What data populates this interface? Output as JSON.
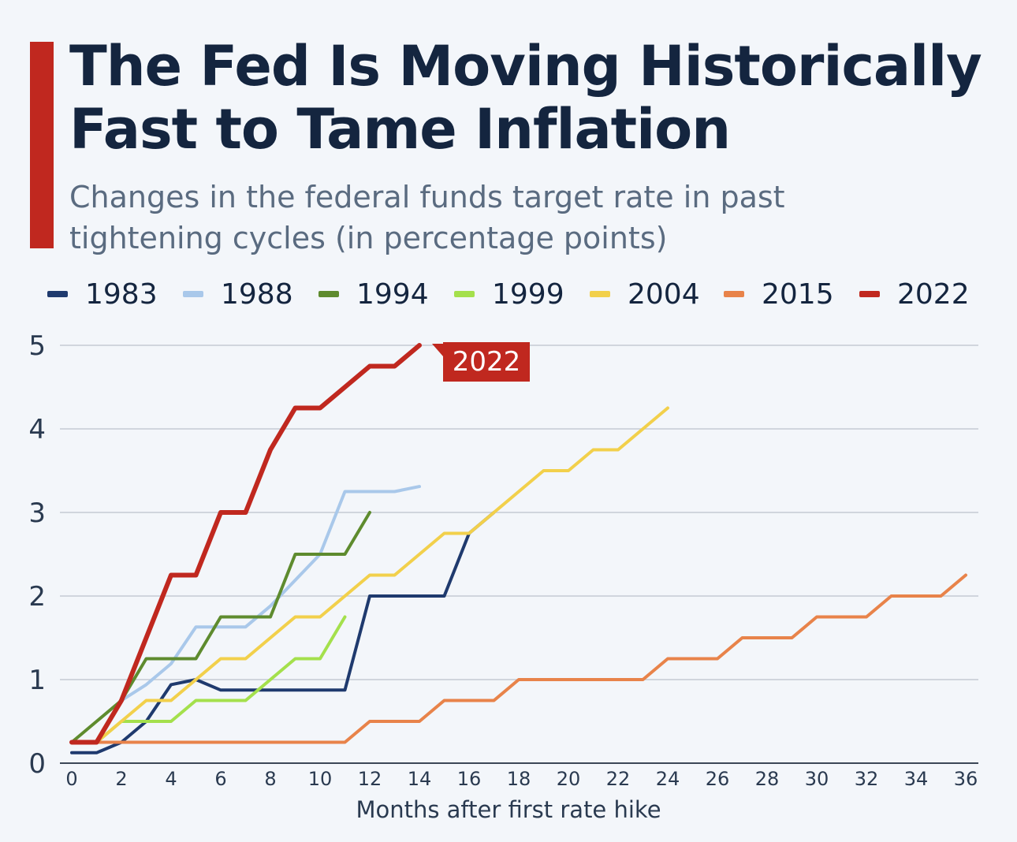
{
  "header": {
    "title_line1": "The Fed Is Moving Historically",
    "title_line2": "Fast to Tame Inflation",
    "subtitle_line1": "Changes in the federal funds target rate in past",
    "subtitle_line2": "tightening cycles (in percentage points)"
  },
  "colors": {
    "accent": "#c0281f",
    "title": "#14253f",
    "subtitle": "#5a6b80",
    "grid": "#c4cad3",
    "axis": "#3b4656"
  },
  "chart_data": {
    "type": "line",
    "title": "The Fed Is Moving Historically Fast to Tame Inflation",
    "subtitle": "Changes in the federal funds target rate in past tightening cycles (in percentage points)",
    "xlabel": "Months after first rate hike",
    "ylabel": "",
    "xlim": [
      0,
      36
    ],
    "ylim": [
      0,
      5
    ],
    "xticks": [
      0,
      2,
      4,
      6,
      8,
      10,
      12,
      14,
      16,
      18,
      20,
      22,
      24,
      26,
      28,
      30,
      32,
      34,
      36
    ],
    "yticks": [
      0,
      1,
      2,
      3,
      4,
      5
    ],
    "grid": true,
    "legend_position": "top",
    "series": [
      {
        "name": "1983",
        "color": "#1f3a6e",
        "x": [
          0,
          1,
          2,
          3,
          4,
          5,
          6,
          7,
          8,
          9,
          10,
          11,
          12,
          13,
          14,
          15,
          16,
          17
        ],
        "y": [
          0.125,
          0.125,
          0.25,
          0.5,
          0.94,
          1.0,
          0.875,
          0.875,
          0.875,
          0.875,
          0.875,
          0.875,
          2.0,
          2.0,
          2.0,
          2.0,
          2.75,
          3.0
        ]
      },
      {
        "name": "1988",
        "color": "#a9c8ea",
        "x": [
          2,
          3,
          4,
          5,
          6,
          7,
          8,
          9,
          10,
          11,
          12,
          13,
          14
        ],
        "y": [
          0.75,
          0.94,
          1.19,
          1.63,
          1.63,
          1.63,
          1.88,
          2.19,
          2.5,
          3.25,
          3.25,
          3.25,
          3.31
        ]
      },
      {
        "name": "1994",
        "color": "#5e8b2e",
        "x": [
          0,
          1,
          2,
          3,
          4,
          5,
          6,
          7,
          8,
          9,
          10,
          11,
          12
        ],
        "y": [
          0.25,
          0.5,
          0.75,
          1.25,
          1.25,
          1.25,
          1.75,
          1.75,
          1.75,
          2.5,
          2.5,
          2.5,
          3.0
        ]
      },
      {
        "name": "1999",
        "color": "#a4e04c",
        "x": [
          0,
          1,
          2,
          3,
          4,
          5,
          6,
          7,
          8,
          9,
          10,
          11
        ],
        "y": [
          0.25,
          0.25,
          0.5,
          0.5,
          0.5,
          0.75,
          0.75,
          0.75,
          1.0,
          1.25,
          1.25,
          1.75
        ]
      },
      {
        "name": "2004",
        "color": "#f2d04b",
        "x": [
          0,
          1,
          2,
          3,
          4,
          5,
          6,
          7,
          8,
          9,
          10,
          11,
          12,
          13,
          14,
          15,
          16,
          17,
          18,
          19,
          20,
          21,
          22,
          23,
          24
        ],
        "y": [
          0.25,
          0.25,
          0.5,
          0.75,
          0.75,
          1.0,
          1.25,
          1.25,
          1.5,
          1.75,
          1.75,
          2.0,
          2.25,
          2.25,
          2.5,
          2.75,
          2.75,
          3.0,
          3.25,
          3.5,
          3.5,
          3.75,
          3.75,
          4.0,
          4.25
        ]
      },
      {
        "name": "2015",
        "color": "#e8834a",
        "x": [
          0,
          1,
          2,
          3,
          4,
          5,
          6,
          7,
          8,
          9,
          10,
          11,
          12,
          13,
          14,
          15,
          16,
          17,
          18,
          19,
          20,
          21,
          22,
          23,
          24,
          25,
          26,
          27,
          28,
          29,
          30,
          31,
          32,
          33,
          34,
          35,
          36
        ],
        "y": [
          0.25,
          0.25,
          0.25,
          0.25,
          0.25,
          0.25,
          0.25,
          0.25,
          0.25,
          0.25,
          0.25,
          0.25,
          0.5,
          0.5,
          0.5,
          0.75,
          0.75,
          0.75,
          1.0,
          1.0,
          1.0,
          1.0,
          1.0,
          1.0,
          1.25,
          1.25,
          1.25,
          1.5,
          1.5,
          1.5,
          1.75,
          1.75,
          1.75,
          2.0,
          2.0,
          2.0,
          2.25
        ]
      },
      {
        "name": "2022",
        "color": "#c0281f",
        "x": [
          0,
          1,
          2,
          3,
          4,
          5,
          6,
          7,
          8,
          9,
          10,
          11,
          12,
          13,
          14
        ],
        "y": [
          0.25,
          0.25,
          0.75,
          1.5,
          2.25,
          2.25,
          3.0,
          3.0,
          3.75,
          4.25,
          4.25,
          4.5,
          4.75,
          4.75,
          5.0
        ]
      }
    ],
    "annotations": [
      {
        "text": "2022",
        "series": "2022",
        "x": 14,
        "y": 5.0,
        "color": "#c0281f"
      }
    ]
  }
}
